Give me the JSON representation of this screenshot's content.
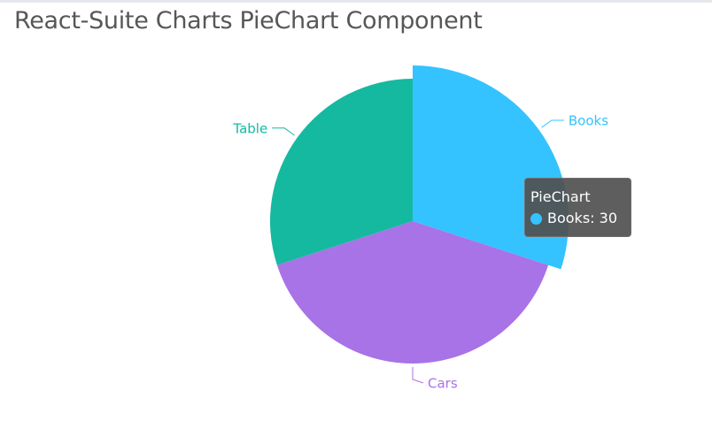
{
  "page": {
    "title": "React-Suite Charts PieChart Component"
  },
  "chart_data": {
    "type": "pie",
    "title": "",
    "name": "PieChart",
    "legend": "none",
    "slices": [
      {
        "label": "Books",
        "value": 30,
        "color": "#34c3ff",
        "highlighted": true
      },
      {
        "label": "Cars",
        "value": 40,
        "color": "#a873e6"
      },
      {
        "label": "Table",
        "value": 30,
        "color": "#15b9a0"
      }
    ],
    "label_colors": {
      "Books": "#34c3ff",
      "Cars": "#a873e6",
      "Table": "#15b9a0"
    }
  },
  "tooltip": {
    "title": "PieChart",
    "series_label": "Books",
    "value_text": "30",
    "color": "#34c3ff"
  }
}
